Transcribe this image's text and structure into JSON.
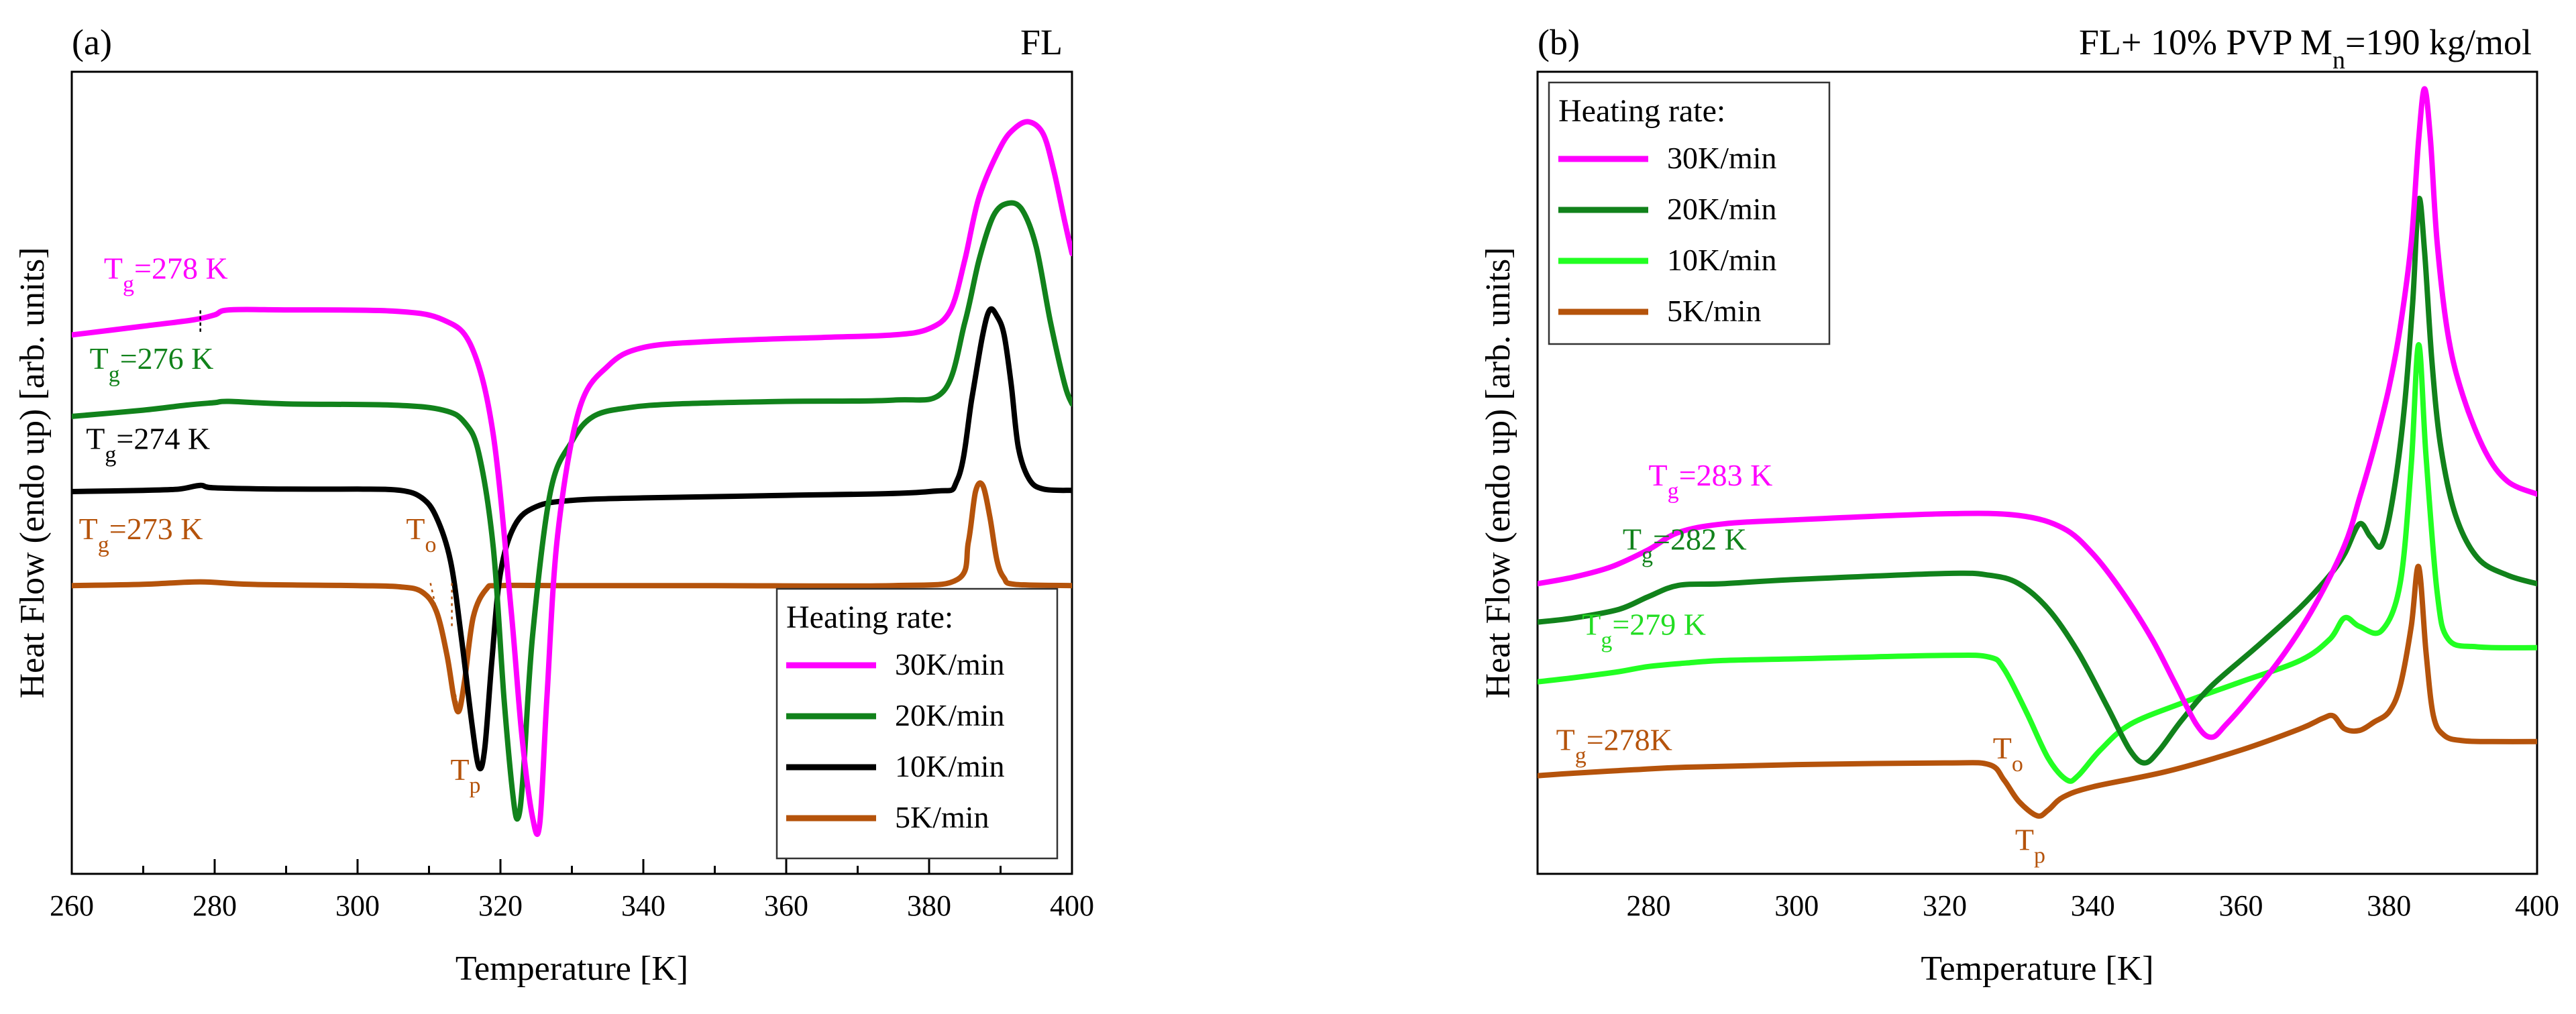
{
  "chart_data": [
    {
      "panel": "(a)",
      "type": "line",
      "corner_label": "FL",
      "title_color": "#000000",
      "xlabel": "Temperature [K]",
      "ylabel": "Heat Flow (endo up) [arb. units]",
      "xlim": [
        260,
        400
      ],
      "ylim": [
        -2.3,
        4.1
      ],
      "xticks": [
        260,
        280,
        300,
        320,
        340,
        360,
        380,
        400
      ],
      "legend_title": "Heating rate:",
      "legend_position": "bottom-right",
      "series": [
        {
          "name": "30K/min",
          "color": "#FF00FF",
          "x": [
            260,
            270,
            277,
            280,
            282,
            290,
            305,
            312,
            316,
            319,
            321.5,
            323,
            324.5,
            325.5,
            326.5,
            328,
            331,
            335,
            340,
            350,
            365,
            375,
            380,
            383,
            385,
            387,
            390,
            392,
            394,
            396,
            397.5,
            399,
            400
          ],
          "y": [
            2.0,
            2.07,
            2.12,
            2.16,
            2.2,
            2.2,
            2.19,
            2.12,
            1.9,
            1.2,
            -0.2,
            -1.2,
            -1.85,
            -1.9,
            -0.9,
            0.4,
            1.4,
            1.75,
            1.9,
            1.95,
            1.98,
            2.0,
            2.05,
            2.2,
            2.6,
            3.1,
            3.5,
            3.65,
            3.7,
            3.6,
            3.3,
            2.9,
            2.65
          ]
        },
        {
          "name": "20K/min",
          "color": "#11821B",
          "x": [
            260,
            270,
            276,
            280,
            282,
            290,
            305,
            312,
            315,
            317,
            319,
            320.5,
            321.8,
            322.5,
            323.2,
            324.5,
            327,
            330,
            333,
            338,
            345,
            360,
            375,
            382,
            385,
            387,
            389,
            391,
            393,
            395,
            397,
            399,
            400
          ],
          "y": [
            1.35,
            1.4,
            1.44,
            1.46,
            1.47,
            1.45,
            1.44,
            1.4,
            1.3,
            1.05,
            0.3,
            -0.9,
            -1.7,
            -1.85,
            -1.5,
            -0.4,
            0.75,
            1.15,
            1.35,
            1.42,
            1.45,
            1.47,
            1.48,
            1.55,
            2.1,
            2.6,
            2.95,
            3.05,
            3.0,
            2.7,
            2.1,
            1.6,
            1.45
          ]
        },
        {
          "name": "10K/min",
          "color": "#000000",
          "x": [
            260,
            270,
            275,
            278,
            280,
            290,
            300,
            306,
            309,
            311,
            313,
            314.5,
            316,
            317,
            317.8,
            318.8,
            320,
            322,
            325,
            330,
            340,
            360,
            380,
            384,
            386,
            387.5,
            388.5,
            389.5,
            390.5,
            391.5,
            392.5,
            394,
            396,
            400
          ],
          "y": [
            0.75,
            0.76,
            0.77,
            0.8,
            0.78,
            0.77,
            0.77,
            0.76,
            0.7,
            0.55,
            0.2,
            -0.4,
            -1.1,
            -1.45,
            -1.3,
            -0.6,
            0.1,
            0.48,
            0.63,
            0.68,
            0.7,
            0.72,
            0.75,
            0.85,
            1.5,
            2.0,
            2.2,
            2.15,
            2.0,
            1.6,
            1.1,
            0.85,
            0.77,
            0.76
          ]
        },
        {
          "name": "5K/min",
          "color": "#B5530B",
          "x": [
            260,
            270,
            278,
            285,
            300,
            306,
            309,
            311,
            312.5,
            313.5,
            314.2,
            315,
            316.2,
            318,
            320,
            330,
            350,
            375,
            384,
            385.5,
            386.5,
            387.5,
            388.5,
            389.5,
            390.5,
            392,
            400
          ],
          "y": [
            0.0,
            0.01,
            0.03,
            0.01,
            0.0,
            -0.01,
            -0.05,
            -0.2,
            -0.55,
            -0.9,
            -1.0,
            -0.75,
            -0.25,
            -0.03,
            0.0,
            0.0,
            0.0,
            0.0,
            0.05,
            0.35,
            0.75,
            0.8,
            0.55,
            0.2,
            0.06,
            0.01,
            0.0
          ]
        }
      ],
      "annotations": [
        {
          "text": "T",
          "sub": "g",
          "rest": "=278 K",
          "color": "#FF00FF",
          "x": 264.5,
          "y": 2.45
        },
        {
          "text": "T",
          "sub": "g",
          "rest": "=276 K",
          "color": "#11821B",
          "x": 262.5,
          "y": 1.73
        },
        {
          "text": "T",
          "sub": "g",
          "rest": "=274 K",
          "color": "#000000",
          "x": 262,
          "y": 1.09
        },
        {
          "text": "T",
          "sub": "g",
          "rest": "=273 K",
          "color": "#B5530B",
          "x": 261,
          "y": 0.37
        },
        {
          "text": "T",
          "sub": "o",
          "rest": "",
          "color": "#B5530B",
          "x": 306.8,
          "y": 0.37
        },
        {
          "text": "T",
          "sub": "p",
          "rest": "",
          "color": "#B5530B",
          "x": 313,
          "y": -1.55
        }
      ],
      "marks": [
        {
          "type": "tg-tick",
          "color": "#000000",
          "x": 278,
          "y": 2.1
        }
      ]
    },
    {
      "panel": "(b)",
      "type": "line",
      "corner_label": "FL+ 10% PVP M",
      "corner_label_sub": "n",
      "corner_label_rest": "=190 kg/mol",
      "title_color": "#22DD22",
      "xlabel": "Temperature [K]",
      "ylabel": "Heat Flow (endo up) [arb. units]",
      "xlim": [
        265,
        400
      ],
      "ylim": [
        -1.4,
        8.0
      ],
      "xticks": [
        280,
        300,
        320,
        340,
        360,
        380,
        400
      ],
      "legend_title": "Heating rate:",
      "legend_position": "top-left",
      "series": [
        {
          "name": "30K/min",
          "color": "#FF00FF",
          "x": [
            265,
            270,
            275,
            280,
            284,
            290,
            300,
            320,
            330,
            336,
            340,
            344,
            348,
            351,
            354,
            356,
            358,
            362,
            366,
            370,
            374,
            376,
            378,
            380,
            381.5,
            383,
            384,
            384.8,
            385.6,
            386.5,
            388,
            390,
            393,
            396,
            400
          ],
          "y": [
            2.0,
            2.08,
            2.2,
            2.4,
            2.6,
            2.7,
            2.75,
            2.82,
            2.8,
            2.65,
            2.35,
            1.9,
            1.35,
            0.85,
            0.35,
            0.2,
            0.35,
            0.75,
            1.2,
            1.75,
            2.45,
            3.0,
            3.6,
            4.3,
            5.0,
            6.0,
            7.2,
            7.8,
            7.2,
            6.0,
            4.9,
            4.2,
            3.55,
            3.2,
            3.05
          ]
        },
        {
          "name": "20K/min",
          "color": "#11821B",
          "x": [
            265,
            270,
            276,
            280,
            284,
            290,
            300,
            320,
            326,
            330,
            334,
            338,
            342,
            345,
            347,
            349,
            352,
            356,
            362,
            368,
            372,
            374,
            376,
            377.5,
            379,
            380.5,
            382,
            383.2,
            384,
            384.8,
            385.8,
            387,
            389,
            392,
            396,
            400
          ],
          "y": [
            1.55,
            1.6,
            1.7,
            1.85,
            1.98,
            2.0,
            2.05,
            2.12,
            2.1,
            2.0,
            1.7,
            1.2,
            0.55,
            0.05,
            -0.1,
            0.05,
            0.4,
            0.8,
            1.25,
            1.72,
            2.1,
            2.35,
            2.7,
            2.55,
            2.45,
            3.0,
            4.0,
            5.3,
            6.5,
            5.9,
            4.6,
            3.6,
            2.8,
            2.3,
            2.1,
            2.0
          ]
        },
        {
          "name": "10K/min",
          "color": "#22FF22",
          "x": [
            265,
            270,
            276,
            280,
            285,
            290,
            300,
            320,
            326,
            328,
            331,
            334,
            336.5,
            338,
            341,
            345,
            352,
            360,
            368,
            372,
            374,
            376,
            379,
            381.5,
            383,
            384,
            385,
            386.5,
            388,
            392,
            400
          ],
          "y": [
            0.85,
            0.9,
            0.97,
            1.03,
            1.07,
            1.1,
            1.12,
            1.16,
            1.14,
            1.0,
            0.5,
            -0.05,
            -0.3,
            -0.25,
            0.05,
            0.35,
            0.6,
            0.85,
            1.1,
            1.35,
            1.6,
            1.5,
            1.45,
            2.0,
            3.4,
            4.8,
            3.5,
            1.9,
            1.35,
            1.26,
            1.25
          ]
        },
        {
          "name": "5K/min",
          "color": "#B5530B",
          "x": [
            265,
            270,
            278,
            285,
            300,
            320,
            326,
            328,
            330,
            332.5,
            334,
            336,
            340,
            350,
            360,
            368,
            371,
            372.5,
            374,
            376,
            378,
            380,
            381.5,
            383,
            384,
            385,
            386,
            387.5,
            390,
            394,
            400
          ],
          "y": [
            -0.25,
            -0.22,
            -0.18,
            -0.15,
            -0.12,
            -0.1,
            -0.12,
            -0.3,
            -0.55,
            -0.72,
            -0.65,
            -0.5,
            -0.38,
            -0.2,
            0.05,
            0.3,
            0.42,
            0.45,
            0.3,
            0.28,
            0.38,
            0.5,
            0.8,
            1.5,
            2.2,
            1.2,
            0.45,
            0.22,
            0.16,
            0.15,
            0.15
          ]
        }
      ],
      "annotations": [
        {
          "text": "T",
          "sub": "g",
          "rest": "=283 K",
          "color": "#FF00FF",
          "x": 280,
          "y": 3.15
        },
        {
          "text": "T",
          "sub": "g",
          "rest": "=282 K",
          "color": "#11821B",
          "x": 276.5,
          "y": 2.4
        },
        {
          "text": "T",
          "sub": "g",
          "rest": "=279 K",
          "color": "#22DD22",
          "x": 271,
          "y": 1.4
        },
        {
          "text": "T",
          "sub": "g",
          "rest": "=278K",
          "color": "#B5530B",
          "x": 267.5,
          "y": 0.05
        },
        {
          "text": "T",
          "sub": "o",
          "rest": "",
          "color": "#B5530B",
          "x": 326.5,
          "y": -0.05
        },
        {
          "text": "T",
          "sub": "p",
          "rest": "",
          "color": "#B5530B",
          "x": 329.5,
          "y": -1.12
        }
      ]
    }
  ]
}
